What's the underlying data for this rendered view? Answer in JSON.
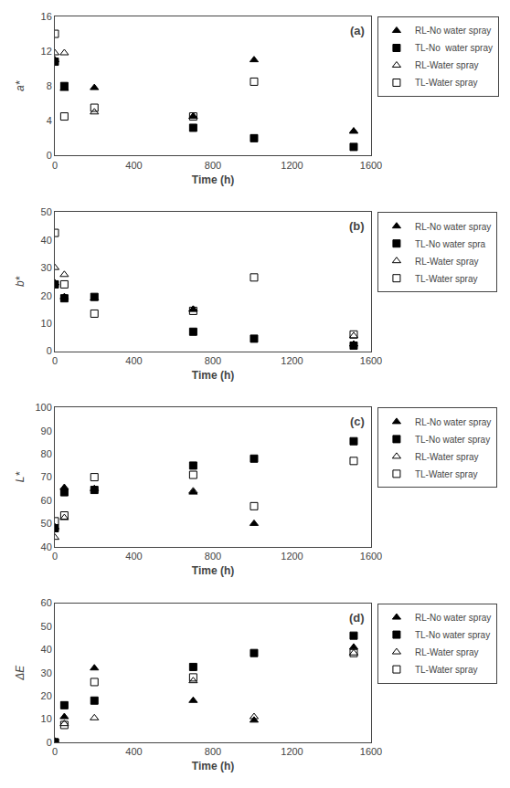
{
  "chart_data": [
    {
      "type": "scatter",
      "xlabel": "Time (h)",
      "ylabel": "a*",
      "xlim": [
        0,
        1600
      ],
      "xticks": [
        0,
        400,
        800,
        1200,
        1600
      ],
      "ylim": [
        0,
        16
      ],
      "yticks": [
        0,
        4,
        8,
        12,
        16
      ],
      "grid": false,
      "legend": "right",
      "annotations": [
        "(a)"
      ],
      "series": [
        {
          "name": "RL-No water spray",
          "marker": "triangle-up",
          "color": "black",
          "x": [
            0,
            48,
            200,
            700,
            1008,
            1512
          ],
          "values": [
            11.0,
            7.7,
            7.8,
            4.5,
            11.0,
            2.8
          ]
        },
        {
          "name": "TL-No  water spray",
          "marker": "square",
          "color": "black",
          "x": [
            0,
            48,
            700,
            1008,
            1512
          ],
          "values": [
            10.8,
            8.0,
            3.2,
            2.0,
            1.0
          ]
        },
        {
          "name": "RL-Water spray",
          "marker": "triangle-up-open",
          "color": "black",
          "x": [
            0,
            48,
            200,
            700,
            1512
          ],
          "values": [
            11.8,
            11.8,
            5.0,
            4.5,
            2.8
          ]
        },
        {
          "name": "TL-Water spray",
          "marker": "square-open",
          "color": "black",
          "x": [
            0,
            48,
            200,
            700,
            1008
          ],
          "values": [
            14.0,
            4.5,
            5.5,
            4.5,
            8.5
          ]
        }
      ]
    },
    {
      "type": "scatter",
      "xlabel": "Time (h)",
      "ylabel": "b*",
      "xlim": [
        0,
        1600
      ],
      "xticks": [
        0,
        400,
        800,
        1200,
        1600
      ],
      "ylim": [
        0,
        50
      ],
      "yticks": [
        0,
        10,
        20,
        30,
        40,
        50
      ],
      "grid": false,
      "legend": "right",
      "annotations": [
        "(b)"
      ],
      "series": [
        {
          "name": "RL-No water spray",
          "marker": "triangle-up",
          "color": "black",
          "x": [
            0,
            48,
            200,
            700,
            1512
          ],
          "values": [
            24.5,
            19.5,
            19.0,
            15.0,
            2.5
          ]
        },
        {
          "name": "TL-No water spra",
          "marker": "square",
          "color": "black",
          "x": [
            0,
            48,
            200,
            700,
            1008,
            1512
          ],
          "values": [
            24.0,
            19.0,
            19.5,
            7.0,
            4.5,
            2.0
          ]
        },
        {
          "name": "RL-Water spray",
          "marker": "triangle-up-open",
          "color": "black",
          "x": [
            0,
            48,
            700,
            1512
          ],
          "values": [
            30.0,
            27.5,
            15.0,
            5.5
          ]
        },
        {
          "name": "TL-Water spray",
          "marker": "square-open",
          "color": "black",
          "x": [
            0,
            48,
            200,
            700,
            1008,
            1512
          ],
          "values": [
            42.5,
            24.0,
            13.5,
            14.5,
            26.5,
            6.0
          ]
        }
      ]
    },
    {
      "type": "scatter",
      "xlabel": "Time (h)",
      "ylabel": "L*",
      "xlim": [
        0,
        1600
      ],
      "xticks": [
        0,
        400,
        800,
        1200,
        1600
      ],
      "ylim": [
        40,
        100
      ],
      "yticks": [
        40,
        50,
        60,
        70,
        80,
        90,
        100
      ],
      "grid": false,
      "legend": "right",
      "annotations": [
        "(c)"
      ],
      "series": [
        {
          "name": "RL-No water spray",
          "marker": "triangle-up",
          "color": "black",
          "x": [
            0,
            48,
            200,
            700,
            1008
          ],
          "values": [
            48.5,
            65.5,
            65.0,
            63.5,
            50.0
          ]
        },
        {
          "name": "TL-No water spray",
          "marker": "square",
          "color": "black",
          "x": [
            0,
            48,
            200,
            700,
            1008,
            1512
          ],
          "values": [
            48.0,
            63.5,
            64.5,
            75.0,
            78.0,
            85.5
          ]
        },
        {
          "name": "RL-Water spray",
          "marker": "triangle-up-open",
          "color": "black",
          "x": [
            0,
            48,
            700
          ],
          "values": [
            44.0,
            52.5,
            64.0
          ]
        },
        {
          "name": "TL-Water spray",
          "marker": "square-open",
          "color": "black",
          "x": [
            0,
            48,
            200,
            700,
            1008,
            1512
          ],
          "values": [
            51.0,
            53.5,
            70.0,
            71.0,
            57.5,
            77.0
          ]
        }
      ]
    },
    {
      "type": "scatter",
      "xlabel": "Time (h)",
      "ylabel": "ΔE",
      "xlim": [
        0,
        1600
      ],
      "xticks": [
        0,
        400,
        800,
        1200,
        1600
      ],
      "ylim": [
        0,
        60
      ],
      "yticks": [
        0,
        10,
        20,
        30,
        40,
        50,
        60
      ],
      "grid": false,
      "legend": "right",
      "annotations": [
        "(d)"
      ],
      "series": [
        {
          "name": "RL-No water spray",
          "marker": "triangle-up",
          "color": "black",
          "x": [
            0,
            48,
            200,
            700,
            1008,
            1512
          ],
          "values": [
            0.0,
            11.0,
            32.0,
            18.0,
            9.5,
            41.0
          ]
        },
        {
          "name": "TL-No water spray",
          "marker": "square",
          "color": "black",
          "x": [
            0,
            48,
            200,
            700,
            1008,
            1512
          ],
          "values": [
            0.0,
            16.0,
            18.0,
            32.5,
            38.5,
            46.0
          ]
        },
        {
          "name": "RL-Water spray",
          "marker": "triangle-up-open",
          "color": "black",
          "x": [
            0,
            48,
            200,
            700,
            1008,
            1512
          ],
          "values": [
            0.5,
            8.0,
            10.5,
            26.5,
            11.0,
            38.5
          ]
        },
        {
          "name": "TL-Water spray",
          "marker": "square-open",
          "color": "black",
          "x": [
            0,
            48,
            200,
            700,
            1512
          ],
          "values": [
            0.0,
            7.5,
            26.0,
            28.0,
            38.5
          ]
        }
      ]
    }
  ]
}
